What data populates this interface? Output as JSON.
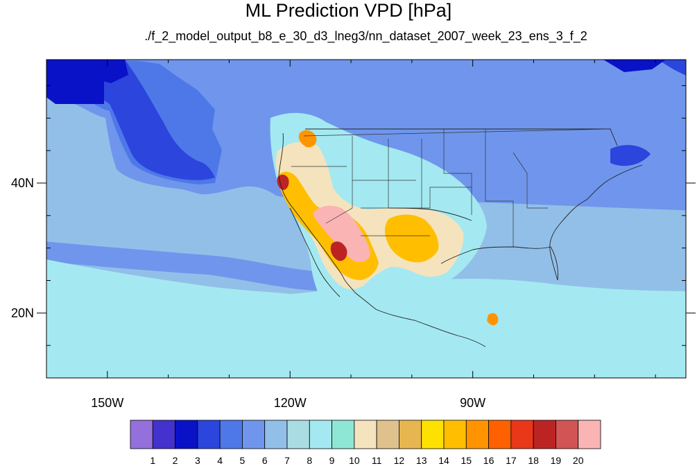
{
  "chart_data": {
    "type": "heatmap",
    "title": "ML Prediction VPD [hPa]",
    "subtitle": "./f_2_model_output_b8_e_30_d3_lneg3/nn_dataset_2007_week_23_ens_3_f_2",
    "x_range": [
      -160,
      -55
    ],
    "y_range": [
      10,
      59
    ],
    "x_ticks": [
      {
        "value": -150,
        "label": "150W"
      },
      {
        "value": -120,
        "label": "120W"
      },
      {
        "value": -90,
        "label": "90W"
      }
    ],
    "y_ticks": [
      {
        "value": 40,
        "label": "40N"
      },
      {
        "value": 20,
        "label": "20N"
      }
    ],
    "colorbar": {
      "levels": [
        "1",
        "2",
        "3",
        "4",
        "5",
        "6",
        "7",
        "8",
        "9",
        "10",
        "11",
        "12",
        "13",
        "14",
        "15",
        "16",
        "17",
        "18",
        "19",
        "20"
      ],
      "colors": [
        "#9370db",
        "#4332cd",
        "#0a12c8",
        "#2b45dd",
        "#4e78e8",
        "#6f96ec",
        "#92bfe8",
        "#a9dde3",
        "#a4e9f1",
        "#8ee7d4",
        "#f5e3bd",
        "#dfc18c",
        "#e7b650",
        "#fde100",
        "#ffbf00",
        "#ff9400",
        "#ff6100",
        "#e9371a",
        "#bc2424",
        "#d25454",
        "#fab4b4"
      ]
    },
    "contours": [
      {
        "level": 5,
        "paths": [
          "M30,128 C60,132 88,140 112,152 C125,158 136,166 152,170 C156,196 160,222 168,244 C186,262 222,268 255,272 C275,274 285,282 300,280 C338,276 360,256 398,282 C420,288 440,286 480,290 L700,292 L900,300 L1005,304 L1005,0 L0,0 L0,128 Z",
          "M0,342 C100,352 200,360 300,368 C360,372 420,392 478,392 L478,420 C420,420 360,404 300,396 C200,390 100,380 0,372 Z"
        ]
      },
      {
        "level": 4,
        "paths": [
          "M0,118 C60,124 96,132 118,140 C134,148 146,158 158,160 C165,184 178,216 190,236 C210,252 246,262 286,266 L310,264 L320,216 L306,186 L310,158 L285,130 L255,110 L230,92 L200,88 L110,86 L0,86 Z"
        ]
      },
      {
        "level": 3,
        "paths": [
          "M0,86 L180,86 C205,120 220,150 235,175 C250,205 262,220 285,232 C300,236 306,248 310,256 C290,262 270,260 250,256 C220,250 200,240 190,222 C178,196 168,170 158,150 C140,136 110,128 80,122 L0,118 Z",
          "M950,86 L1005,86 L1005,115 C985,108 965,98 950,86 Z",
          "M880,215 C900,205 925,208 938,222 C925,238 900,244 880,235 Z"
        ]
      },
      {
        "level": 2,
        "paths": [
          "M110,86 L180,86 L185,108 L160,120 L130,112 Z",
          "M870,86 L960,86 L940,100 L900,104 Z",
          "M0,86 L150,86 L150,150 L80,150 L60,135 L0,130 Z"
        ]
      },
      {
        "level": 8,
        "paths": [
          "M0,360 C80,378 180,396 280,410 C330,418 380,420 420,424 L460,420 L500,408 C540,410 580,406 620,404 C680,400 740,402 800,410 C860,416 920,420 1005,420 L1005,545 L0,545 Z",
          "M390,170 C420,158 450,162 470,176 C500,190 520,200 560,212 C600,222 640,240 670,268 C690,290 700,306 702,326 C700,344 690,364 672,384 C660,398 640,410 618,422 C600,426 580,434 560,444 C540,456 522,464 506,470 C490,468 476,456 466,440 C456,418 450,400 448,378 C444,358 438,340 430,322 C420,302 408,282 400,262 C394,238 388,206 390,170 Z"
        ]
      },
      {
        "level": 10,
        "paths": [
          "M400,218 C420,202 444,200 460,212 C470,230 476,250 480,270 C490,288 510,300 530,302 C560,300 590,298 616,302 C640,306 660,316 668,336 C670,356 660,376 645,392 C630,402 612,400 600,394 C586,388 572,382 560,386 C546,392 534,402 524,412 C510,420 496,418 486,408 C474,396 466,382 460,366 C454,350 446,336 436,320 C424,302 412,284 404,264 C398,248 396,232 400,218 Z"
        ]
      },
      {
        "level": 14,
        "paths": [
          "M404,250 C414,244 426,250 432,262 C442,276 448,290 458,298 C470,304 486,306 500,310 C514,316 524,328 530,340 C536,354 542,366 546,378 C544,392 532,402 520,404 C506,404 494,396 484,386 C474,374 466,360 458,348 C448,338 438,328 428,316 C418,302 410,288 404,272 C400,262 400,254 404,250 Z",
          "M560,316 C578,306 600,308 614,318 C626,330 634,344 632,360 C624,374 610,380 596,378 C582,376 570,368 562,356 C554,342 552,328 560,316 Z"
        ]
      },
      {
        "level": 20,
        "paths": [
          "M452,306 C462,296 478,294 492,300 C504,308 514,320 520,332 C528,346 534,358 534,368 C530,378 520,380 510,376 C500,370 492,360 484,350 C474,340 466,330 458,320 C454,314 450,310 452,306 Z"
        ]
      },
      {
        "level": 18,
        "paths": [
          "M400,256 C404,250 412,250 416,258 C418,266 414,274 408,274 C402,272 398,264 400,256 Z",
          "M478,352 C486,344 496,350 500,360 C502,370 496,378 488,376 C480,372 474,362 478,352 Z"
        ]
      },
      {
        "level": 15,
        "paths": [
          "M432,192 C440,184 452,188 456,198 C458,208 450,214 442,212 C434,208 428,200 432,192 Z",
          "M704,454 C712,448 720,454 718,464 C714,472 706,470 702,462 Z"
        ]
      }
    ],
    "coastlines": [
      "M408,192 C410,212 404,232 402,252 C404,272 412,288 424,302 C436,318 448,334 460,350 C472,366 484,382 494,398 C498,408 506,414 512,422 C522,430 532,438 542,446 C560,454 580,458 598,462",
      "M418,300 C428,320 436,340 446,360 C454,378 462,396 474,410 C480,418 486,424 490,428",
      "M598,462 C620,470 640,478 660,484 C676,488 690,494 700,500",
      "M636,380 C650,372 666,366 682,360 C702,356 722,356 742,356 C762,358 778,360 794,356 C802,370 806,388 804,404",
      "M804,404 C800,390 796,378 794,366 C790,350 796,336 808,322 C820,308 830,296 846,288 C858,276 868,264 884,256 C898,248 914,242 926,238",
      "M560,300 C580,300 600,300 620,302 C640,305 660,310 680,318",
      "M440,186 L880,186 L890,210"
    ],
    "borders": [
      "M438,196 L878,186",
      "M508,196 L508,300 L470,322",
      "M520,300 L620,300 L620,270 L680,270",
      "M560,200 L560,300",
      "M608,200 L608,300",
      "M640,186 L640,250 L680,250 L680,310",
      "M700,186 L700,290 L740,290 L740,356",
      "M740,220 L760,250 L760,300 L790,300",
      "M420,240 L500,240",
      "M508,260 L600,260",
      "M520,340 L620,340"
    ]
  }
}
